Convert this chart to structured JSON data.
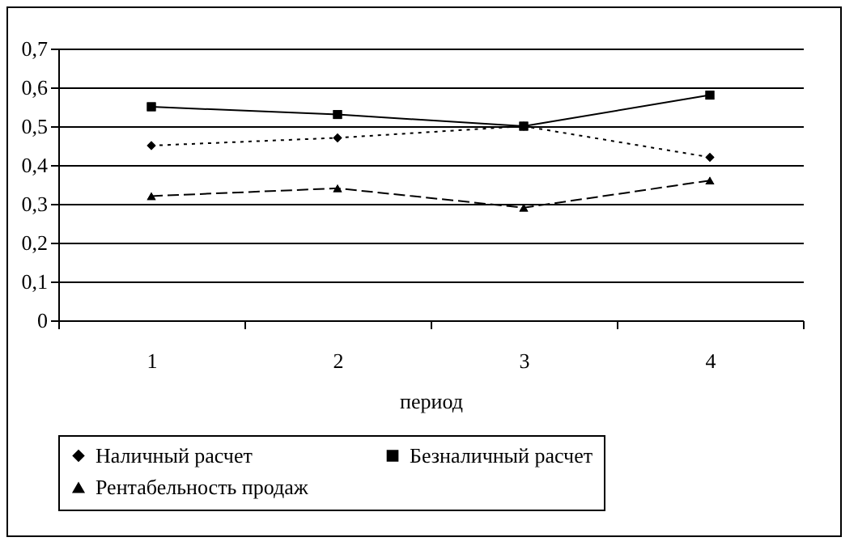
{
  "chart_data": {
    "type": "line",
    "xlabel": "период",
    "categories": [
      "1",
      "2",
      "3",
      "4"
    ],
    "series": [
      {
        "name": "Наличный расчет",
        "color": "#000000",
        "marker": "diamond",
        "line_style": "dotted",
        "values": [
          0.45,
          0.47,
          0.5,
          0.42
        ]
      },
      {
        "name": "Безналичный расчет",
        "color": "#000000",
        "marker": "square",
        "line_style": "solid",
        "values": [
          0.55,
          0.53,
          0.5,
          0.58
        ]
      },
      {
        "name": "Рентабельность продаж",
        "color": "#000000",
        "marker": "triangle",
        "line_style": "dashed",
        "values": [
          0.32,
          0.34,
          0.29,
          0.36
        ]
      }
    ],
    "ylim": [
      0,
      0.7
    ],
    "yticks": [
      0,
      {
        "value": 0.1,
        "label": "0,1"
      },
      {
        "value": 0.2,
        "label": "0,2"
      },
      {
        "value": 0.3,
        "label": "0,3"
      },
      {
        "value": 0.4,
        "label": "0,4"
      },
      {
        "value": 0.5,
        "label": "0,5"
      },
      {
        "value": 0.6,
        "label": "0,6"
      },
      {
        "value": 0.7,
        "label": "0,7"
      }
    ],
    "grid": "y",
    "legend": "bottom"
  }
}
